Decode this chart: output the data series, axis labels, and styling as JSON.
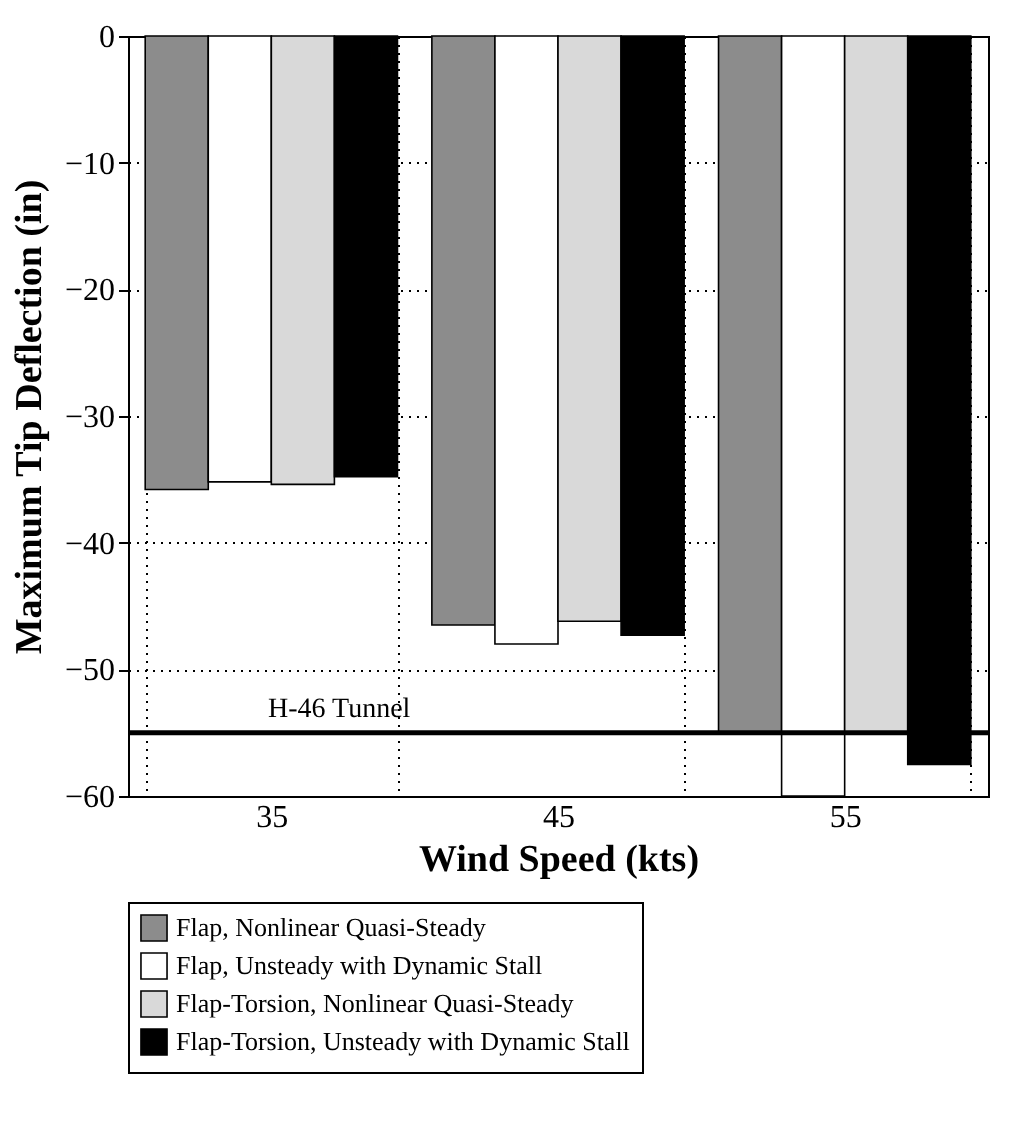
{
  "chart_data": {
    "type": "bar",
    "xlabel": "Wind Speed (kts)",
    "ylabel": "Maximum Tip Deflection (in)",
    "categories": [
      "35",
      "45",
      "55"
    ],
    "series": [
      {
        "name": "Flap, Nonlinear Quasi-Steady",
        "color": "#8c8c8c",
        "values": [
          -35.8,
          -46.5,
          -55
        ]
      },
      {
        "name": "Flap, Unsteady with Dynamic Stall",
        "color": "#ffffff",
        "values": [
          -35.2,
          -48,
          -60
        ]
      },
      {
        "name": "Flap-Torsion, Nonlinear Quasi-Steady",
        "color": "#d9d9d9",
        "values": [
          -35.4,
          -46.2,
          -55
        ]
      },
      {
        "name": "Flap-Torsion, Unsteady with Dynamic Stall",
        "color": "#000000",
        "values": [
          -34.8,
          -47.3,
          -57.5
        ]
      }
    ],
    "ylim": [
      -60,
      0
    ],
    "yticks": [
      -60,
      -50,
      -40,
      -30,
      -20,
      -10,
      0
    ],
    "ref_lines": [
      {
        "axis": "y",
        "value": -55,
        "label": "H-46 Tunnel",
        "color": "#000000"
      }
    ],
    "grid": true,
    "line_style": "dotted",
    "legend": "bottom"
  }
}
